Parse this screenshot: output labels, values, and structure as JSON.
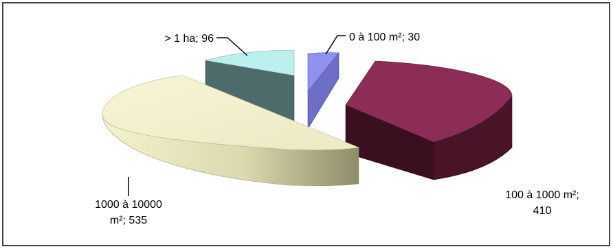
{
  "chart_data": {
    "type": "pie",
    "style": "3d-exploded",
    "slices": [
      {
        "name": "0 à 100 m²",
        "value": 30,
        "label_lines": [
          "0 à 100 m²; 30"
        ],
        "color": "#9090EE",
        "side_color": "#6E6EC4"
      },
      {
        "name": "100 à 1000 m²",
        "value": 410,
        "label_lines": [
          "100 à 1000 m²;",
          "410"
        ],
        "color": "#8B2D57",
        "side_color": "#4A1428"
      },
      {
        "name": "1000 à 10000 m²",
        "value": 535,
        "label_lines": [
          "1000 à 10000",
          "m²; 535"
        ],
        "color": "#F2F0CC",
        "side_color": "#D6D4A8"
      },
      {
        "name": "> 1 ha",
        "value": 96,
        "label_lines": [
          "> 1 ha; 96"
        ],
        "color": "#BDEFEF",
        "side_color": "#4E6B6B"
      }
    ],
    "title": "",
    "legend": "none"
  }
}
